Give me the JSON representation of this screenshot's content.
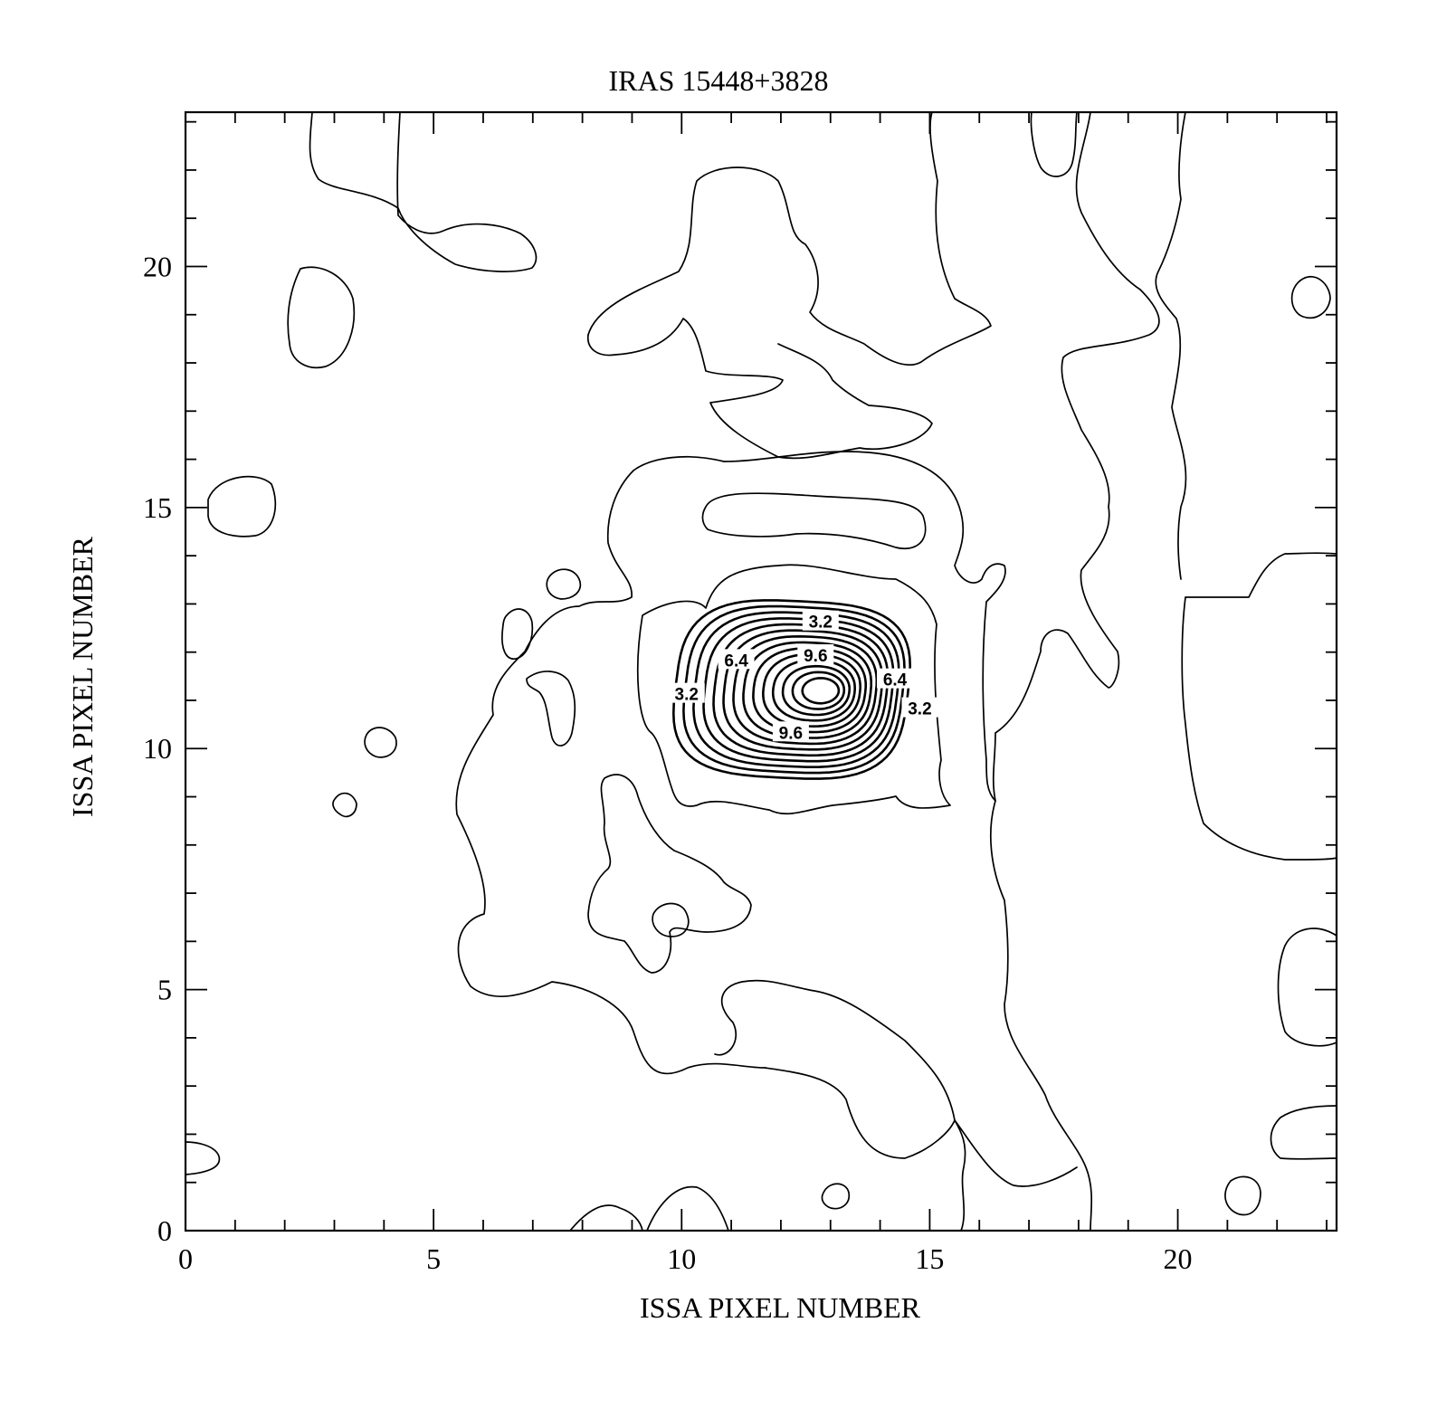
{
  "chart_data": {
    "type": "contour",
    "title": "IRAS 15448+3828",
    "xlabel": "ISSA PIXEL NUMBER",
    "ylabel": "ISSA PIXEL NUMBER",
    "xlim": [
      0,
      23.2
    ],
    "ylim": [
      0,
      23.2
    ],
    "x_ticks": [
      0,
      5,
      10,
      15,
      20
    ],
    "y_ticks": [
      0,
      5,
      10,
      15,
      20
    ],
    "x_tick_labels": [
      "0",
      "5",
      "10",
      "15",
      "20"
    ],
    "y_tick_labels": [
      "0",
      "5",
      "10",
      "15",
      "20"
    ],
    "minor_tick_step": 1,
    "grid": false,
    "peak": {
      "x": 12.8,
      "y": 11.2
    },
    "contour_labels": [
      {
        "text": "3.2",
        "x": 12.8,
        "y": 12.6
      },
      {
        "text": "9.6",
        "x": 12.7,
        "y": 11.9
      },
      {
        "text": "6.4",
        "x": 11.1,
        "y": 11.8
      },
      {
        "text": "3.2",
        "x": 10.1,
        "y": 11.1
      },
      {
        "text": "6.4",
        "x": 14.3,
        "y": 11.4
      },
      {
        "text": "3.2",
        "x": 14.8,
        "y": 10.8
      },
      {
        "text": "9.6",
        "x": 12.2,
        "y": 10.3
      }
    ]
  }
}
